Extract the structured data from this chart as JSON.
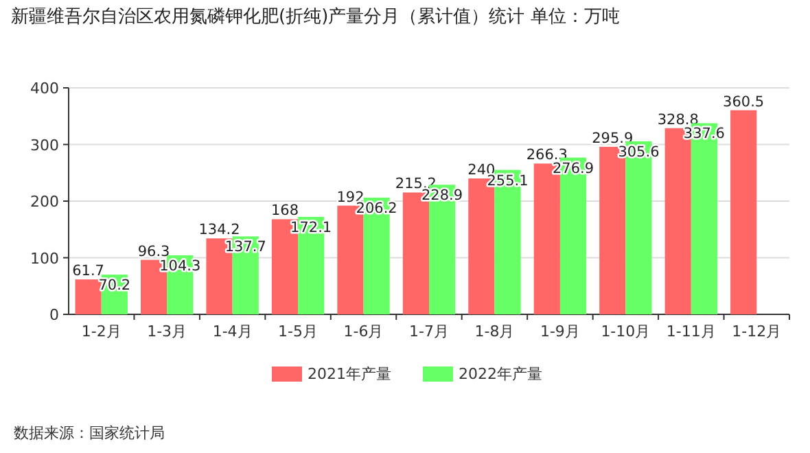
{
  "chart_data": {
    "type": "bar",
    "title": "新疆维吾尔自治区农用氮磷钾化肥(折纯)产量分月（累计值）统计 单位：万吨",
    "categories": [
      "1-2月",
      "1-3月",
      "1-4月",
      "1-5月",
      "1-6月",
      "1-7月",
      "1-8月",
      "1-9月",
      "1-10月",
      "1-11月",
      "1-12月"
    ],
    "series": [
      {
        "name": "2021年产量",
        "color": "#ff6666",
        "values": [
          61.7,
          96.3,
          134.2,
          168,
          192,
          215.2,
          240,
          266.3,
          295.9,
          328.8,
          360.5
        ]
      },
      {
        "name": "2022年产量",
        "color": "#66ff66",
        "values": [
          70.2,
          104.3,
          137.7,
          172.1,
          206.2,
          228.9,
          255.1,
          276.9,
          305.6,
          337.6,
          null
        ]
      }
    ],
    "ylim": [
      0,
      400
    ],
    "yticks": [
      0,
      100,
      200,
      300,
      400
    ],
    "grid": "y",
    "legend": "bottom",
    "data_labels": true,
    "annotations": [
      "数据来源：国家统计局"
    ]
  }
}
